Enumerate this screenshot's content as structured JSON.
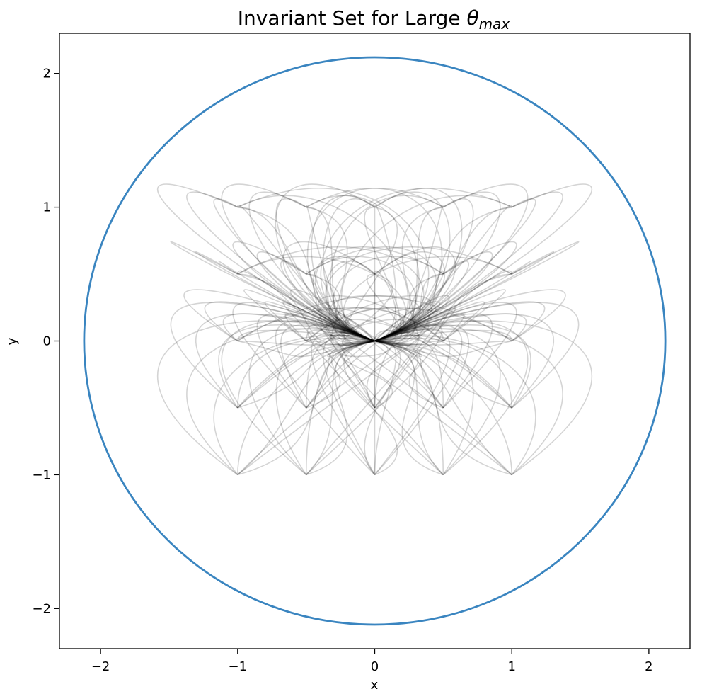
{
  "chart_data": {
    "type": "line",
    "title_main": "Invariant Set for Large ",
    "title_symbol": "θ",
    "title_subscript": "max",
    "xlabel": "x",
    "ylabel": "y",
    "xlim": [
      -2.3,
      2.3
    ],
    "ylim": [
      -2.3,
      2.3
    ],
    "grid": false,
    "legend": "none",
    "xticks": [
      -2,
      -1,
      0,
      1,
      2
    ],
    "yticks": [
      -2,
      -1,
      0,
      1,
      2
    ],
    "xtick_labels": [
      "−2",
      "−1",
      "0",
      "1",
      "2"
    ],
    "ytick_labels": [
      "−2",
      "−1",
      "0",
      "1",
      "2"
    ],
    "invariant_circle": {
      "center": [
        0,
        0
      ],
      "radius": 2.12,
      "color": "#3a85c0"
    },
    "trajectory_color": "#000000",
    "trajectory_start_points": [
      [
        -1,
        1
      ],
      [
        -0.5,
        1
      ],
      [
        0,
        1
      ],
      [
        0.5,
        1
      ],
      [
        1,
        1
      ],
      [
        -1,
        0.5
      ],
      [
        -0.5,
        0.5
      ],
      [
        0,
        0.5
      ],
      [
        0.5,
        0.5
      ],
      [
        1,
        0.5
      ],
      [
        -1,
        0
      ],
      [
        -0.5,
        0
      ],
      [
        0,
        0
      ],
      [
        0.5,
        0
      ],
      [
        1,
        0
      ],
      [
        -1,
        -0.5
      ],
      [
        -0.5,
        -0.5
      ],
      [
        0,
        -0.5
      ],
      [
        0.5,
        -0.5
      ],
      [
        1,
        -0.5
      ],
      [
        -1,
        -1
      ],
      [
        -0.5,
        -1
      ],
      [
        0,
        -1
      ],
      [
        0.5,
        -1
      ],
      [
        1,
        -1
      ]
    ],
    "trajectory_end_point": [
      0,
      0
    ]
  }
}
